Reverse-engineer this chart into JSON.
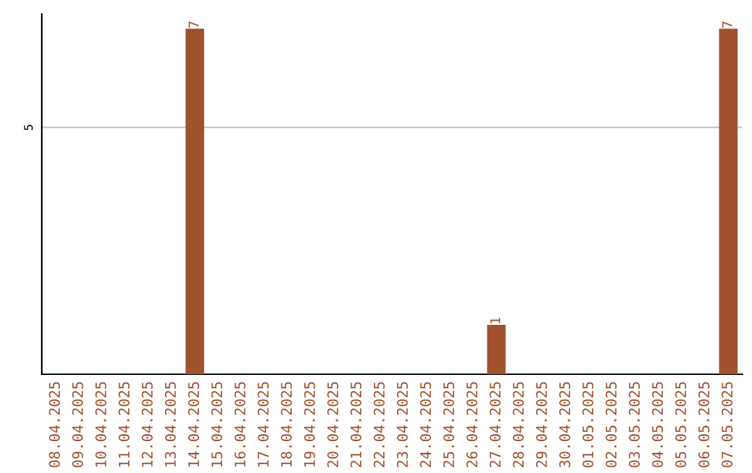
{
  "chart_data": {
    "type": "bar",
    "categories": [
      "08.04.2025",
      "09.04.2025",
      "10.04.2025",
      "11.04.2025",
      "12.04.2025",
      "13.04.2025",
      "14.04.2025",
      "15.04.2025",
      "16.04.2025",
      "17.04.2025",
      "18.04.2025",
      "19.04.2025",
      "20.04.2025",
      "21.04.2025",
      "22.04.2025",
      "23.04.2025",
      "24.04.2025",
      "25.04.2025",
      "26.04.2025",
      "27.04.2025",
      "28.04.2025",
      "29.04.2025",
      "30.04.2025",
      "01.05.2025",
      "02.05.2025",
      "03.05.2025",
      "04.05.2025",
      "05.05.2025",
      "06.05.2025",
      "07.05.2025"
    ],
    "values": [
      0,
      0,
      0,
      0,
      0,
      0,
      7,
      0,
      0,
      0,
      0,
      0,
      0,
      0,
      0,
      0,
      0,
      0,
      0,
      1,
      0,
      0,
      0,
      0,
      0,
      0,
      0,
      0,
      0,
      7
    ],
    "value_labels": [
      null,
      null,
      null,
      null,
      null,
      null,
      "7",
      null,
      null,
      null,
      null,
      null,
      null,
      null,
      null,
      null,
      null,
      null,
      null,
      "1",
      null,
      null,
      null,
      null,
      null,
      null,
      null,
      null,
      null,
      "7"
    ],
    "color": "#a0522d",
    "ylim": [
      0,
      7.3
    ],
    "yticks": [
      5
    ],
    "grid": "y"
  }
}
